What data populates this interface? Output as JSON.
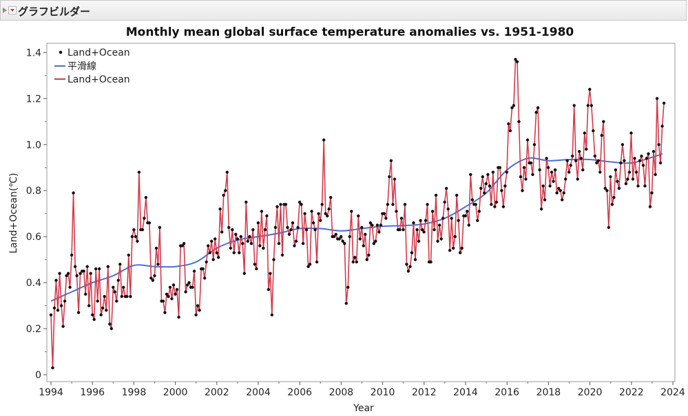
{
  "window": {
    "title": "グラフビルダー"
  },
  "chart_data": {
    "type": "line",
    "title": "Monthly mean global surface temperature anomalies vs. 1951-1980",
    "xlabel": "Year",
    "ylabel": "Land+Ocean(℃)",
    "xlim": [
      1993.8,
      2024.1
    ],
    "ylim": [
      -0.03,
      1.44
    ],
    "xticks": [
      1994,
      1996,
      1998,
      2000,
      2002,
      2004,
      2006,
      2008,
      2010,
      2012,
      2014,
      2016,
      2018,
      2020,
      2022,
      2024
    ],
    "yticks": [
      0,
      0.2,
      0.4,
      0.6,
      0.8,
      1.0,
      1.2,
      1.4
    ],
    "ytick_labels": [
      "0",
      "0.2",
      "0.4",
      "0.6",
      "0.8",
      "1.0",
      "1.2",
      "1.4"
    ],
    "legend": [
      {
        "label": "Land+Ocean",
        "kind": "points",
        "color": "#111111"
      },
      {
        "label": "平滑線",
        "kind": "line",
        "color": "#4a6fd8"
      },
      {
        "label": "Land+Ocean",
        "kind": "line",
        "color": "#d43a4c"
      }
    ],
    "x_start": 1994.0,
    "x_step": 0.0833,
    "series": [
      {
        "name": "Land+Ocean",
        "values": [
          0.26,
          0.03,
          0.29,
          0.41,
          0.28,
          0.44,
          0.3,
          0.21,
          0.32,
          0.43,
          0.44,
          0.38,
          0.52,
          0.79,
          0.47,
          0.43,
          0.27,
          0.44,
          0.45,
          0.45,
          0.35,
          0.47,
          0.3,
          0.44,
          0.26,
          0.24,
          0.46,
          0.32,
          0.46,
          0.26,
          0.29,
          0.34,
          0.28,
          0.47,
          0.22,
          0.2,
          0.38,
          0.36,
          0.32,
          0.41,
          0.48,
          0.34,
          0.38,
          0.34,
          0.34,
          0.52,
          0.34,
          0.6,
          0.63,
          0.6,
          0.58,
          0.88,
          0.63,
          0.63,
          0.68,
          0.77,
          0.66,
          0.66,
          0.42,
          0.41,
          0.43,
          0.55,
          0.48,
          0.64,
          0.32,
          0.32,
          0.27,
          0.35,
          0.34,
          0.38,
          0.33,
          0.39,
          0.35,
          0.37,
          0.25,
          0.56,
          0.56,
          0.57,
          0.36,
          0.39,
          0.4,
          0.38,
          0.38,
          0.45,
          0.26,
          0.3,
          0.28,
          0.46,
          0.46,
          0.42,
          0.49,
          0.56,
          0.53,
          0.58,
          0.5,
          0.59,
          0.53,
          0.51,
          0.72,
          0.62,
          0.78,
          0.8,
          0.88,
          0.64,
          0.55,
          0.63,
          0.53,
          0.61,
          0.59,
          0.53,
          0.6,
          0.57,
          0.44,
          0.75,
          0.58,
          0.6,
          0.57,
          0.63,
          0.48,
          0.46,
          0.66,
          0.56,
          0.71,
          0.55,
          0.63,
          0.69,
          0.37,
          0.44,
          0.26,
          0.5,
          0.64,
          0.73,
          0.57,
          0.74,
          0.52,
          0.74,
          0.74,
          0.64,
          0.61,
          0.63,
          0.66,
          0.56,
          0.58,
          0.64,
          0.75,
          0.74,
          0.57,
          0.7,
          0.63,
          0.47,
          0.48,
          0.71,
          0.66,
          0.63,
          0.49,
          0.7,
          0.67,
          0.74,
          1.02,
          0.7,
          0.69,
          0.72,
          0.77,
          0.6,
          0.6,
          0.61,
          0.59,
          0.59,
          0.6,
          0.58,
          0.57,
          0.31,
          0.38,
          0.6,
          0.71,
          0.49,
          0.51,
          0.49,
          0.69,
          0.59,
          0.64,
          0.56,
          0.61,
          0.5,
          0.52,
          0.66,
          0.65,
          0.57,
          0.58,
          0.65,
          0.62,
          0.65,
          0.7,
          0.7,
          0.68,
          0.74,
          0.86,
          0.93,
          0.74,
          0.85,
          0.71,
          0.63,
          0.63,
          0.68,
          0.63,
          0.74,
          0.48,
          0.45,
          0.47,
          0.53,
          0.66,
          0.5,
          0.63,
          0.58,
          0.67,
          0.63,
          0.62,
          0.67,
          0.74,
          0.49,
          0.49,
          0.71,
          0.63,
          0.78,
          0.58,
          0.65,
          0.59,
          0.68,
          0.75,
          0.81,
          0.72,
          0.54,
          0.68,
          0.55,
          0.6,
          0.78,
          0.67,
          0.53,
          0.55,
          0.69,
          0.69,
          0.71,
          0.65,
          0.87,
          0.76,
          0.74,
          0.74,
          0.67,
          0.71,
          0.81,
          0.86,
          0.79,
          0.83,
          0.87,
          0.82,
          0.74,
          0.88,
          0.73,
          0.75,
          0.9,
          0.9,
          0.8,
          0.73,
          0.82,
          0.88,
          1.09,
          1.06,
          1.16,
          1.17,
          1.37,
          1.36,
          1.1,
          0.86,
          0.8,
          0.9,
          0.85,
          1.02,
          0.92,
          0.92,
          0.87,
          1.0,
          1.14,
          1.16,
          0.89,
          0.72,
          0.82,
          0.76,
          0.94,
          0.9,
          0.82,
          0.88,
          0.84,
          0.89,
          0.79,
          0.81,
          0.8,
          0.76,
          0.79,
          0.85,
          0.93,
          0.88,
          0.91,
          0.95,
          1.17,
          0.93,
          0.85,
          0.97,
          0.94,
          0.89,
          1.05,
          0.98,
          1.17,
          1.24,
          1.17,
          1.06,
          0.95,
          0.92,
          0.93,
          0.88,
          1.04,
          1.1,
          0.81,
          0.8,
          0.64,
          0.86,
          0.74,
          0.77,
          0.89,
          0.84,
          0.81,
          0.92,
          1.0,
          0.93,
          0.83,
          0.85,
          0.88,
          1.05,
          0.85,
          0.94,
          0.88,
          0.82,
          0.93,
          0.95,
          0.91,
          0.82,
          0.94,
          0.96,
          0.73,
          0.79,
          0.97,
          0.87,
          1.2,
          1.0,
          0.92,
          1.08,
          1.18
        ]
      },
      {
        "name": "平滑線",
        "x": [
          1994.0,
          1995.0,
          1996.0,
          1997.0,
          1998.0,
          1999.0,
          2000.0,
          2001.0,
          2002.0,
          2003.0,
          2004.0,
          2005.0,
          2006.0,
          2007.0,
          2008.0,
          2009.0,
          2010.0,
          2011.0,
          2012.0,
          2013.0,
          2014.0,
          2015.0,
          2016.0,
          2017.0,
          2018.0,
          2019.0,
          2020.0,
          2021.0,
          2022.0,
          2023.0,
          2023.5
        ],
        "values": [
          0.32,
          0.36,
          0.4,
          0.43,
          0.475,
          0.47,
          0.47,
          0.49,
          0.55,
          0.585,
          0.6,
          0.615,
          0.635,
          0.635,
          0.625,
          0.635,
          0.645,
          0.648,
          0.655,
          0.68,
          0.73,
          0.79,
          0.89,
          0.94,
          0.93,
          0.935,
          0.935,
          0.925,
          0.92,
          0.945,
          0.96
        ]
      }
    ]
  }
}
